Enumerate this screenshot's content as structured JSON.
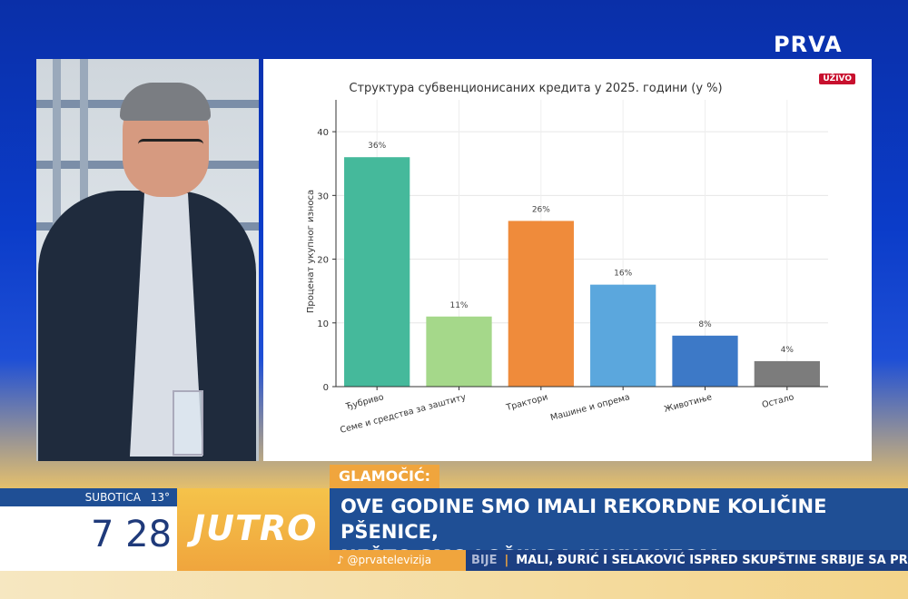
{
  "channel": {
    "logo": "PRVA",
    "live_badge": "UŽIVO"
  },
  "chart_data": {
    "type": "bar",
    "title": "Структура субвенционисаних кредита у 2025. години (у %)",
    "xlabel": "",
    "ylabel": "Проценат укупног износа",
    "ylim": [
      0,
      45
    ],
    "yticks": [
      0,
      10,
      20,
      30,
      40
    ],
    "grid": true,
    "categories": [
      "Ђубриво",
      "Семе и средства за заштиту",
      "Трактори",
      "Машине и опрема",
      "Животиње",
      "Остало"
    ],
    "values": [
      36,
      11,
      26,
      16,
      8,
      4
    ],
    "value_labels": [
      "36%",
      "11%",
      "26%",
      "16%",
      "8%",
      "4%"
    ],
    "colors": [
      "#45b99b",
      "#a5d88a",
      "#ef8b3b",
      "#5ba7dd",
      "#3d79c7",
      "#7c7c7c"
    ]
  },
  "lower_third": {
    "speaker": "GLAMOČIĆ:",
    "headline_line1": "OVE GODINE SMO IMALI REKORDNE KOLIČINE PŠENICE,",
    "headline_line2": "NEŠTO SMO LOŠIJI SA KUKURUZOM",
    "day": "SUBOTICA",
    "temperature": "13°",
    "time": "7 28",
    "show": "JUTRO",
    "social": "@prvatelevizija",
    "ticker_fade": "BIJE",
    "ticker": "MALI, ĐURIĆ I SELAKOVIĆ ISPRED SKUPŠTINE SRBIJE SA PRISTA"
  }
}
